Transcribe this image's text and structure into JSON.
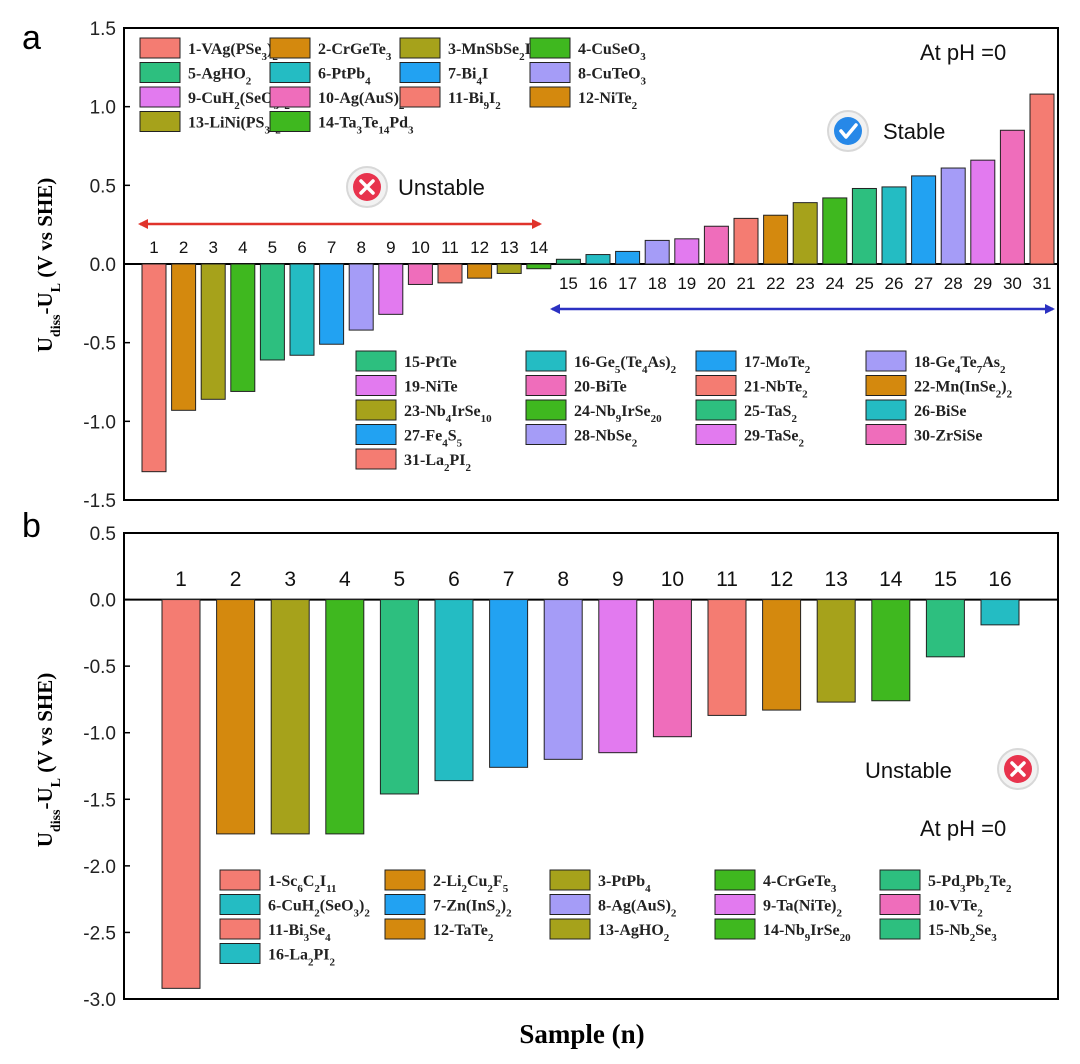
{
  "x_label": "Sample (n)",
  "y_label_base": "U",
  "y_label_sub1": "diss",
  "y_label_mid": "-U",
  "y_label_sub2": "L",
  "y_label_tail": " (V vs SHE)",
  "colors": [
    "#f47c72",
    "#d4890e",
    "#a6a21b",
    "#3fb81f",
    "#2dbf7f",
    "#24bcc3",
    "#22a2f2",
    "#a59cf7",
    "#e27aef",
    "#ef6dbb"
  ],
  "chart_data": [
    {
      "type": "bar",
      "panel": "a",
      "title": "",
      "ylim": [
        -1.5,
        1.5
      ],
      "yticks": [
        "1.5",
        "1.0",
        "0.5",
        "0.0",
        "-0.5",
        "-1.0",
        "-1.5"
      ],
      "categories": [
        "1",
        "2",
        "3",
        "4",
        "5",
        "6",
        "7",
        "8",
        "9",
        "10",
        "11",
        "12",
        "13",
        "14",
        "15",
        "16",
        "17",
        "18",
        "19",
        "20",
        "21",
        "22",
        "23",
        "24",
        "25",
        "26",
        "27",
        "28",
        "29",
        "30",
        "31"
      ],
      "values": [
        -1.32,
        -0.93,
        -0.86,
        -0.81,
        -0.61,
        -0.58,
        -0.51,
        -0.42,
        -0.32,
        -0.13,
        -0.12,
        -0.09,
        -0.06,
        -0.03,
        0.03,
        0.06,
        0.08,
        0.15,
        0.16,
        0.24,
        0.29,
        0.31,
        0.39,
        0.42,
        0.48,
        0.49,
        0.56,
        0.61,
        0.66,
        0.85,
        1.08
      ],
      "annotations": {
        "ph": "At pH =0",
        "stable": "Stable",
        "unstable": "Unstable"
      },
      "legend_top": [
        [
          "1-VAg(PSe",
          {
            "sub": "3"
          },
          ")",
          {
            "sub": "2"
          }
        ],
        [
          "2-CrGeTe",
          {
            "sub": "3"
          }
        ],
        [
          "3-MnSbSe",
          {
            "sub": "2"
          },
          "I"
        ],
        [
          "4-CuSeO",
          {
            "sub": "3"
          }
        ],
        [
          "5-AgHO",
          {
            "sub": "2"
          }
        ],
        [
          "6-PtPb",
          {
            "sub": "4"
          }
        ],
        [
          "7-Bi",
          {
            "sub": "4"
          },
          "I"
        ],
        [
          "8-CuTeO",
          {
            "sub": "3"
          }
        ],
        [
          "9-CuH",
          {
            "sub": "2"
          },
          "(SeO",
          {
            "sub": "3"
          },
          ")",
          {
            "sub": "2"
          }
        ],
        [
          "10-Ag(AuS)",
          {
            "sub": "2"
          }
        ],
        [
          "11-Bi",
          {
            "sub": "9"
          },
          "I",
          {
            "sub": "2"
          }
        ],
        [
          "12-NiTe",
          {
            "sub": "2"
          }
        ],
        [
          "13-LiNi(PS",
          {
            "sub": "3"
          },
          ")",
          {
            "sub": "2"
          }
        ],
        [
          "14-Ta",
          {
            "sub": "3"
          },
          "Te",
          {
            "sub": "14"
          },
          "Pd",
          {
            "sub": "3"
          }
        ]
      ],
      "legend_bottom": [
        [
          "15-PtTe"
        ],
        [
          "16-Ge",
          {
            "sub": "5"
          },
          "(Te",
          {
            "sub": "4"
          },
          "As)",
          {
            "sub": "2"
          }
        ],
        [
          "17-MoTe",
          {
            "sub": "2"
          }
        ],
        [
          "18-Ge",
          {
            "sub": "4"
          },
          "Te",
          {
            "sub": "7"
          },
          "As",
          {
            "sub": "2"
          }
        ],
        [
          "19-NiTe"
        ],
        [
          "20-BiTe"
        ],
        [
          "21-NbTe",
          {
            "sub": "2"
          }
        ],
        [
          "22-Mn(InSe",
          {
            "sub": "2"
          },
          ")",
          {
            "sub": "2"
          }
        ],
        [
          "23-Nb",
          {
            "sub": "4"
          },
          "IrSe",
          {
            "sub": "10"
          }
        ],
        [
          "24-Nb",
          {
            "sub": "9"
          },
          "IrSe",
          {
            "sub": "20"
          }
        ],
        [
          "25-TaS",
          {
            "sub": "2"
          }
        ],
        [
          "26-BiSe"
        ],
        [
          "27-Fe",
          {
            "sub": "4"
          },
          "S",
          {
            "sub": "5"
          }
        ],
        [
          "28-NbSe",
          {
            "sub": "2"
          }
        ],
        [
          "29-TaSe",
          {
            "sub": "2"
          }
        ],
        [
          "30-ZrSiSe"
        ],
        [
          "31-La",
          {
            "sub": "2"
          },
          "PI",
          {
            "sub": "2"
          }
        ]
      ]
    },
    {
      "type": "bar",
      "panel": "b",
      "title": "",
      "ylim": [
        -3.0,
        0.5
      ],
      "yticks": [
        "0.5",
        "0.0",
        "-0.5",
        "-1.0",
        "-1.5",
        "-2.0",
        "-2.5",
        "-3.0"
      ],
      "categories": [
        "1",
        "2",
        "3",
        "4",
        "5",
        "6",
        "7",
        "8",
        "9",
        "10",
        "11",
        "12",
        "13",
        "14",
        "15",
        "16"
      ],
      "values": [
        -2.92,
        -1.76,
        -1.76,
        -1.76,
        -1.46,
        -1.36,
        -1.26,
        -1.2,
        -1.15,
        -1.03,
        -0.87,
        -0.83,
        -0.77,
        -0.76,
        -0.43,
        -0.19
      ],
      "annotations": {
        "unstable": "Unstable",
        "ph": "At pH =0"
      },
      "legend": [
        [
          "1-Sc",
          {
            "sub": "6"
          },
          "C",
          {
            "sub": "2"
          },
          "I",
          {
            "sub": "11"
          }
        ],
        [
          "2-Li",
          {
            "sub": "2"
          },
          "Cu",
          {
            "sub": "2"
          },
          "F",
          {
            "sub": "5"
          }
        ],
        [
          "3-PtPb",
          {
            "sub": "4"
          }
        ],
        [
          "4-CrGeTe",
          {
            "sub": "3"
          }
        ],
        [
          "5-Pd",
          {
            "sub": "3"
          },
          "Pb",
          {
            "sub": "2"
          },
          "Te",
          {
            "sub": "2"
          }
        ],
        [
          "6-CuH",
          {
            "sub": "2"
          },
          "(SeO",
          {
            "sub": "3"
          },
          ")",
          {
            "sub": "2"
          }
        ],
        [
          "7-Zn(InS",
          {
            "sub": "2"
          },
          ")",
          {
            "sub": "2"
          }
        ],
        [
          "8-Ag(AuS)",
          {
            "sub": "2"
          }
        ],
        [
          "9-Ta(NiTe)",
          {
            "sub": "2"
          }
        ],
        [
          "10-VTe",
          {
            "sub": "2"
          }
        ],
        [
          "11-Bi",
          {
            "sub": "3"
          },
          "Se",
          {
            "sub": "4"
          }
        ],
        [
          "12-TaTe",
          {
            "sub": "2"
          }
        ],
        [
          "13-AgHO",
          {
            "sub": "2"
          }
        ],
        [
          "14-Nb",
          {
            "sub": "9"
          },
          "IrSe",
          {
            "sub": "20"
          }
        ],
        [
          "15-Nb",
          {
            "sub": "2"
          },
          "Se",
          {
            "sub": "3"
          }
        ],
        [
          "16-La",
          {
            "sub": "2"
          },
          "PI",
          {
            "sub": "2"
          }
        ]
      ]
    }
  ]
}
